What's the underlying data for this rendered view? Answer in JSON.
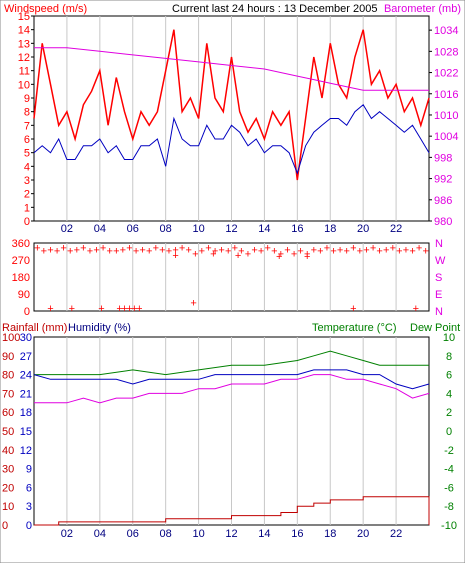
{
  "chart_data": [
    {
      "type": "line",
      "title": "Current last 24 hours : 13 December 2005",
      "left_label": "Windspeed (m/s)",
      "right_label": "Barometer (mb)",
      "x_ticks": [
        "02",
        "04",
        "06",
        "08",
        "10",
        "12",
        "14",
        "16",
        "18",
        "20",
        "22"
      ],
      "xlim": [
        0,
        24
      ],
      "ylim": [
        0,
        15
      ],
      "y_ticks": [
        0,
        1,
        2,
        3,
        4,
        5,
        6,
        7,
        8,
        9,
        10,
        11,
        12,
        13,
        14,
        15
      ],
      "y2lim": [
        980,
        1038
      ],
      "y2_ticks": [
        980,
        986,
        992,
        998,
        1004,
        1010,
        1016,
        1022,
        1028,
        1034
      ],
      "grid": true,
      "series": [
        {
          "color": "#ff0000",
          "axis": "left",
          "x": [
            0,
            0.5,
            1,
            1.5,
            2,
            2.5,
            3,
            3.5,
            4,
            4.5,
            5,
            5.5,
            6,
            6.5,
            7,
            7.5,
            8,
            8.5,
            9,
            9.5,
            10,
            10.5,
            11,
            11.5,
            12,
            12.5,
            13,
            13.5,
            14,
            14.5,
            15,
            15.5,
            16,
            16.5,
            17,
            17.5,
            18,
            18.5,
            19,
            19.5,
            20,
            20.5,
            21,
            21.5,
            22,
            22.5,
            23,
            23.5,
            24
          ],
          "values": [
            7.5,
            13,
            10,
            7,
            8,
            6,
            8.5,
            9.5,
            11,
            7,
            10.5,
            8,
            6,
            8,
            7,
            8,
            11,
            14,
            8,
            9,
            7.5,
            13,
            9,
            8,
            12,
            8,
            6.5,
            7.5,
            6,
            8,
            7,
            8,
            3,
            7.5,
            12,
            9,
            13,
            10,
            9,
            12,
            14,
            10,
            11,
            9,
            10,
            8,
            9,
            7,
            9
          ]
        },
        {
          "color": "#0000c0",
          "axis": "left",
          "x": [
            0,
            0.5,
            1,
            1.5,
            2,
            2.5,
            3,
            3.5,
            4,
            4.5,
            5,
            5.5,
            6,
            6.5,
            7,
            7.5,
            8,
            8.5,
            9,
            9.5,
            10,
            10.5,
            11,
            11.5,
            12,
            12.5,
            13,
            13.5,
            14,
            14.5,
            15,
            15.5,
            16,
            16.5,
            17,
            17.5,
            18,
            18.5,
            19,
            19.5,
            20,
            20.5,
            21,
            21.5,
            22,
            22.5,
            23,
            23.5,
            24
          ],
          "values": [
            5,
            5.5,
            5,
            6,
            4.5,
            4.5,
            5.5,
            5.5,
            6,
            5,
            5.5,
            4.5,
            4.5,
            5.5,
            5.5,
            6,
            4,
            7.5,
            6,
            5.5,
            5.5,
            7,
            6,
            6,
            7,
            6.5,
            5.5,
            6,
            5,
            5.5,
            5.5,
            5,
            3.5,
            5.5,
            6.5,
            7,
            7.5,
            7.5,
            7,
            8,
            8.5,
            7.5,
            8,
            7.5,
            7,
            6.5,
            7,
            6,
            5
          ]
        },
        {
          "color": "#e000e0",
          "axis": "right",
          "x": [
            0,
            2,
            4,
            6,
            8,
            10,
            12,
            14,
            16,
            17,
            18,
            19,
            20,
            21,
            22,
            23,
            24
          ],
          "values": [
            1029,
            1029,
            1028,
            1027,
            1026,
            1025,
            1024,
            1023,
            1021,
            1020,
            1019,
            1018,
            1017,
            1017,
            1017,
            1017,
            1017
          ]
        }
      ]
    },
    {
      "type": "scatter",
      "ylim": [
        0,
        360
      ],
      "y_ticks": [
        0,
        90,
        180,
        270,
        360
      ],
      "y2_ticks": [
        "N",
        "E",
        "S",
        "W",
        "N"
      ],
      "xlim": [
        0,
        24
      ],
      "grid": true,
      "series": [
        {
          "color": "#ff0000",
          "x": [
            0.2,
            0.6,
            1,
            1.4,
            1.8,
            2.2,
            2.6,
            3,
            3.4,
            3.8,
            4.2,
            4.6,
            5,
            5.4,
            5.8,
            6.2,
            6.6,
            7,
            7.4,
            7.8,
            8.2,
            8.6,
            9,
            9.4,
            9.8,
            10.2,
            10.6,
            11,
            11.4,
            11.8,
            12.2,
            12.6,
            13,
            13.4,
            13.8,
            14.2,
            14.6,
            15,
            15.4,
            15.8,
            16.2,
            16.6,
            17,
            17.4,
            17.8,
            18.2,
            18.6,
            19,
            19.4,
            19.8,
            20.2,
            20.6,
            21,
            21.4,
            21.8,
            22.2,
            22.6,
            23,
            23.4,
            23.8,
            5.2,
            5.5,
            5.8,
            6.1,
            6.4,
            4.1,
            2.3,
            1,
            9.7,
            19.4,
            23.2,
            16.6,
            12.4,
            10.9,
            8.6,
            14.9
          ],
          "values": [
            330,
            315,
            320,
            315,
            330,
            315,
            320,
            330,
            315,
            320,
            330,
            315,
            315,
            320,
            330,
            315,
            320,
            315,
            330,
            320,
            315,
            320,
            330,
            320,
            300,
            315,
            330,
            315,
            320,
            315,
            330,
            315,
            300,
            320,
            315,
            330,
            315,
            300,
            320,
            300,
            315,
            300,
            320,
            315,
            330,
            315,
            320,
            315,
            330,
            315,
            320,
            330,
            315,
            320,
            330,
            315,
            320,
            315,
            330,
            315,
            10,
            10,
            10,
            10,
            10,
            10,
            10,
            10,
            40,
            10,
            10,
            285,
            290,
            300,
            290,
            285
          ]
        }
      ]
    },
    {
      "type": "line",
      "left_label": "Rainfall (mm)",
      "left_label_2": "Humidity (%)",
      "right_label": "Temperature (°C)",
      "right_label_2": "Dew Point",
      "x_ticks": [
        "02",
        "04",
        "06",
        "08",
        "10",
        "12",
        "14",
        "16",
        "18",
        "20",
        "22"
      ],
      "xlim": [
        0,
        24
      ],
      "rain_ticks": [
        0,
        10,
        20,
        30,
        40,
        50,
        60,
        70,
        80,
        90,
        100
      ],
      "hum_ticks": [
        0,
        3,
        6,
        9,
        12,
        15,
        18,
        21,
        24,
        27,
        30
      ],
      "rain_ylim": [
        0,
        30
      ],
      "temp_ylim": [
        -10,
        10
      ],
      "temp_ticks": [
        -10,
        -8,
        -6,
        -4,
        -2,
        0,
        2,
        4,
        6,
        8,
        10
      ],
      "grid": true,
      "series": [
        {
          "color": "#008000",
          "axis": "temp",
          "x": [
            0,
            2,
            4,
            6,
            8,
            10,
            12,
            14,
            16,
            17,
            18,
            19,
            20,
            21,
            22,
            23,
            24
          ],
          "values": [
            6,
            6,
            6,
            6.5,
            6,
            6.5,
            7,
            7,
            7.5,
            8,
            8.5,
            8,
            7.5,
            7,
            7,
            7,
            7
          ]
        },
        {
          "color": "#0000c0",
          "axis": "temp",
          "x": [
            0,
            1,
            2,
            3,
            4,
            5,
            6,
            7,
            8,
            9,
            10,
            11,
            12,
            13,
            14,
            15,
            16,
            17,
            18,
            19,
            20,
            21,
            22,
            23,
            24
          ],
          "values": [
            6,
            5.5,
            5.5,
            5.5,
            5.5,
            5.5,
            5,
            5.5,
            5.5,
            5.5,
            5.5,
            6,
            6,
            6,
            6,
            6,
            6,
            6.5,
            6.5,
            6.5,
            6,
            6,
            5,
            4.5,
            5
          ]
        },
        {
          "color": "#e000e0",
          "axis": "temp",
          "x": [
            0,
            1,
            2,
            3,
            4,
            5,
            6,
            7,
            8,
            9,
            10,
            11,
            12,
            13,
            14,
            15,
            16,
            17,
            18,
            19,
            20,
            21,
            22,
            23,
            24
          ],
          "values": [
            3,
            3,
            3,
            3.5,
            3,
            3.5,
            3.5,
            4,
            4,
            4,
            4.5,
            4.5,
            5,
            5,
            5,
            5.5,
            5.5,
            6,
            6,
            5.5,
            5.5,
            5,
            4.5,
            3.5,
            4
          ]
        },
        {
          "color": "#c00000",
          "axis": "rain",
          "x": [
            0,
            1.5,
            1.5,
            8,
            8,
            12,
            12,
            15,
            15,
            16,
            16,
            17,
            17,
            18,
            18,
            20,
            20,
            24,
            24
          ],
          "values": [
            0,
            0,
            0.5,
            0.5,
            1,
            1,
            1.5,
            1.5,
            2,
            2,
            3,
            3,
            3.5,
            3.5,
            4,
            4,
            4.5,
            4.5,
            0
          ]
        }
      ]
    }
  ]
}
